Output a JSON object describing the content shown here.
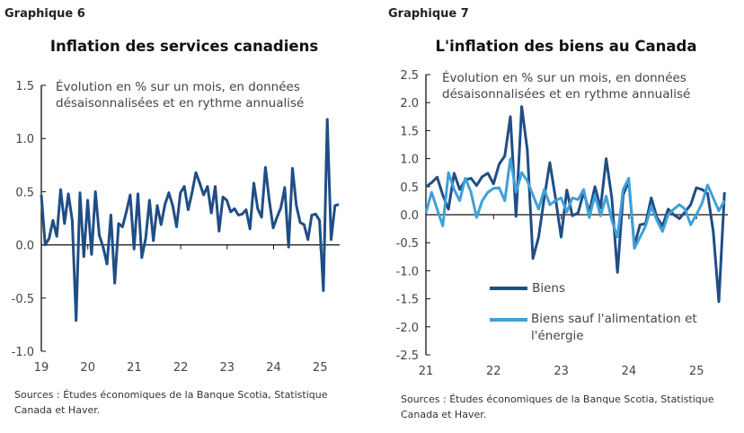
{
  "colors": {
    "dark": "#1f4e85",
    "light": "#41a0d8",
    "axis": "#111111"
  },
  "chart_data": [
    {
      "type": "line",
      "figure_label": "Graphique 6",
      "title": "Inflation des services canadiens",
      "subtitle": "Évolution en % sur un mois, en données désaisonnalisées et en rythme annualisé",
      "sources": "Sources : Études économiques de la Banque Scotia, Statistique Canada et Haver.",
      "x_start": "2019-01",
      "frequency": "monthly",
      "ylim": [
        -1.0,
        1.5
      ],
      "yticks": [
        "1.5",
        "1.0",
        "0.5",
        "0.0",
        "-0.5",
        "-1.0"
      ],
      "xticks": [
        "19",
        "20",
        "21",
        "22",
        "23",
        "24",
        "25"
      ],
      "grid": false,
      "series": [
        {
          "color": "#1f4e85",
          "values": [
            0.47,
            0,
            0.06,
            0.23,
            0.08,
            0.52,
            0.2,
            0.48,
            0.23,
            -0.71,
            0.49,
            -0.11,
            0.42,
            -0.09,
            0.5,
            0.09,
            -0.02,
            -0.18,
            0.28,
            -0.36,
            0.2,
            0.17,
            0.31,
            0.47,
            -0.04,
            0.48,
            -0.12,
            0.06,
            0.42,
            0.04,
            0.37,
            0.19,
            0.38,
            0.49,
            0.37,
            0.17,
            0.49,
            0.55,
            0.33,
            0.49,
            0.68,
            0.58,
            0.47,
            0.55,
            0.3,
            0.55,
            0.13,
            0.45,
            0.42,
            0.31,
            0.34,
            0.28,
            0.29,
            0.33,
            0.15,
            0.58,
            0.34,
            0.26,
            0.73,
            0.42,
            0.16,
            0.26,
            0.35,
            0.54,
            -0.02,
            0.72,
            0.37,
            0.21,
            0.19,
            0.05,
            0.28,
            0.29,
            0.23,
            -0.43,
            1.18,
            0.05,
            0.37,
            0.38
          ]
        }
      ]
    },
    {
      "type": "line",
      "figure_label": "Graphique 7",
      "title": "L'inflation des biens au Canada",
      "subtitle": "Évolution en % sur un mois, en données désaisonnalisées et en rythme annualisé",
      "sources": "Sources : Études économiques de la Banque Scotia, Statistique Canada et Haver.",
      "x_start": "2021-01",
      "frequency": "monthly",
      "ylim": [
        -2.5,
        2.5
      ],
      "yticks": [
        "2.5",
        "2.0",
        "1.5",
        "1.0",
        "0.5",
        "0.0",
        "-0.5",
        "-1.0",
        "-1.5",
        "-2.0",
        "-2.5"
      ],
      "xticks": [
        "21",
        "22",
        "23",
        "24",
        "25"
      ],
      "grid": false,
      "legend_position": "bottom-center",
      "series": [
        {
          "name": "Biens",
          "color": "#1f4e85",
          "values": [
            0.5,
            0.57,
            0.67,
            0.35,
            0.1,
            0.74,
            0.45,
            0.62,
            0.65,
            0.52,
            0.68,
            0.74,
            0.55,
            0.9,
            1.05,
            1.75,
            -0.03,
            1.93,
            1.15,
            -0.78,
            -0.4,
            0.3,
            0.93,
            0.3,
            -0.4,
            0.44,
            -0.02,
            0.03,
            0.4,
            0.05,
            0.5,
            0.12,
            1.0,
            0.3,
            -1.03,
            0.35,
            0.6,
            -0.55,
            -0.18,
            -0.16,
            0.3,
            -0.05,
            -0.2,
            0.1,
            0.0,
            -0.07,
            0.05,
            0.18,
            0.48,
            0.45,
            0.38,
            -0.3,
            -1.55,
            0.4
          ]
        },
        {
          "name": "Biens sauf l'alimentation et l'énergie",
          "color": "#41a0d8",
          "values": [
            0.03,
            0.4,
            0.1,
            -0.2,
            0.75,
            0.45,
            0.25,
            0.65,
            0.4,
            -0.05,
            0.25,
            0.4,
            0.47,
            0.48,
            0.25,
            1.0,
            0.4,
            0.75,
            0.6,
            0.35,
            0.1,
            0.45,
            0.18,
            0.25,
            0.3,
            0.05,
            0.3,
            0.27,
            0.45,
            -0.05,
            0.35,
            -0.02,
            0.33,
            -0.1,
            -0.4,
            0.45,
            0.65,
            -0.6,
            -0.4,
            -0.2,
            0.15,
            -0.1,
            -0.3,
            0.0,
            0.1,
            0.18,
            0.1,
            -0.18,
            0.0,
            0.2,
            0.53,
            0.3,
            0.07,
            0.25
          ]
        }
      ]
    }
  ]
}
